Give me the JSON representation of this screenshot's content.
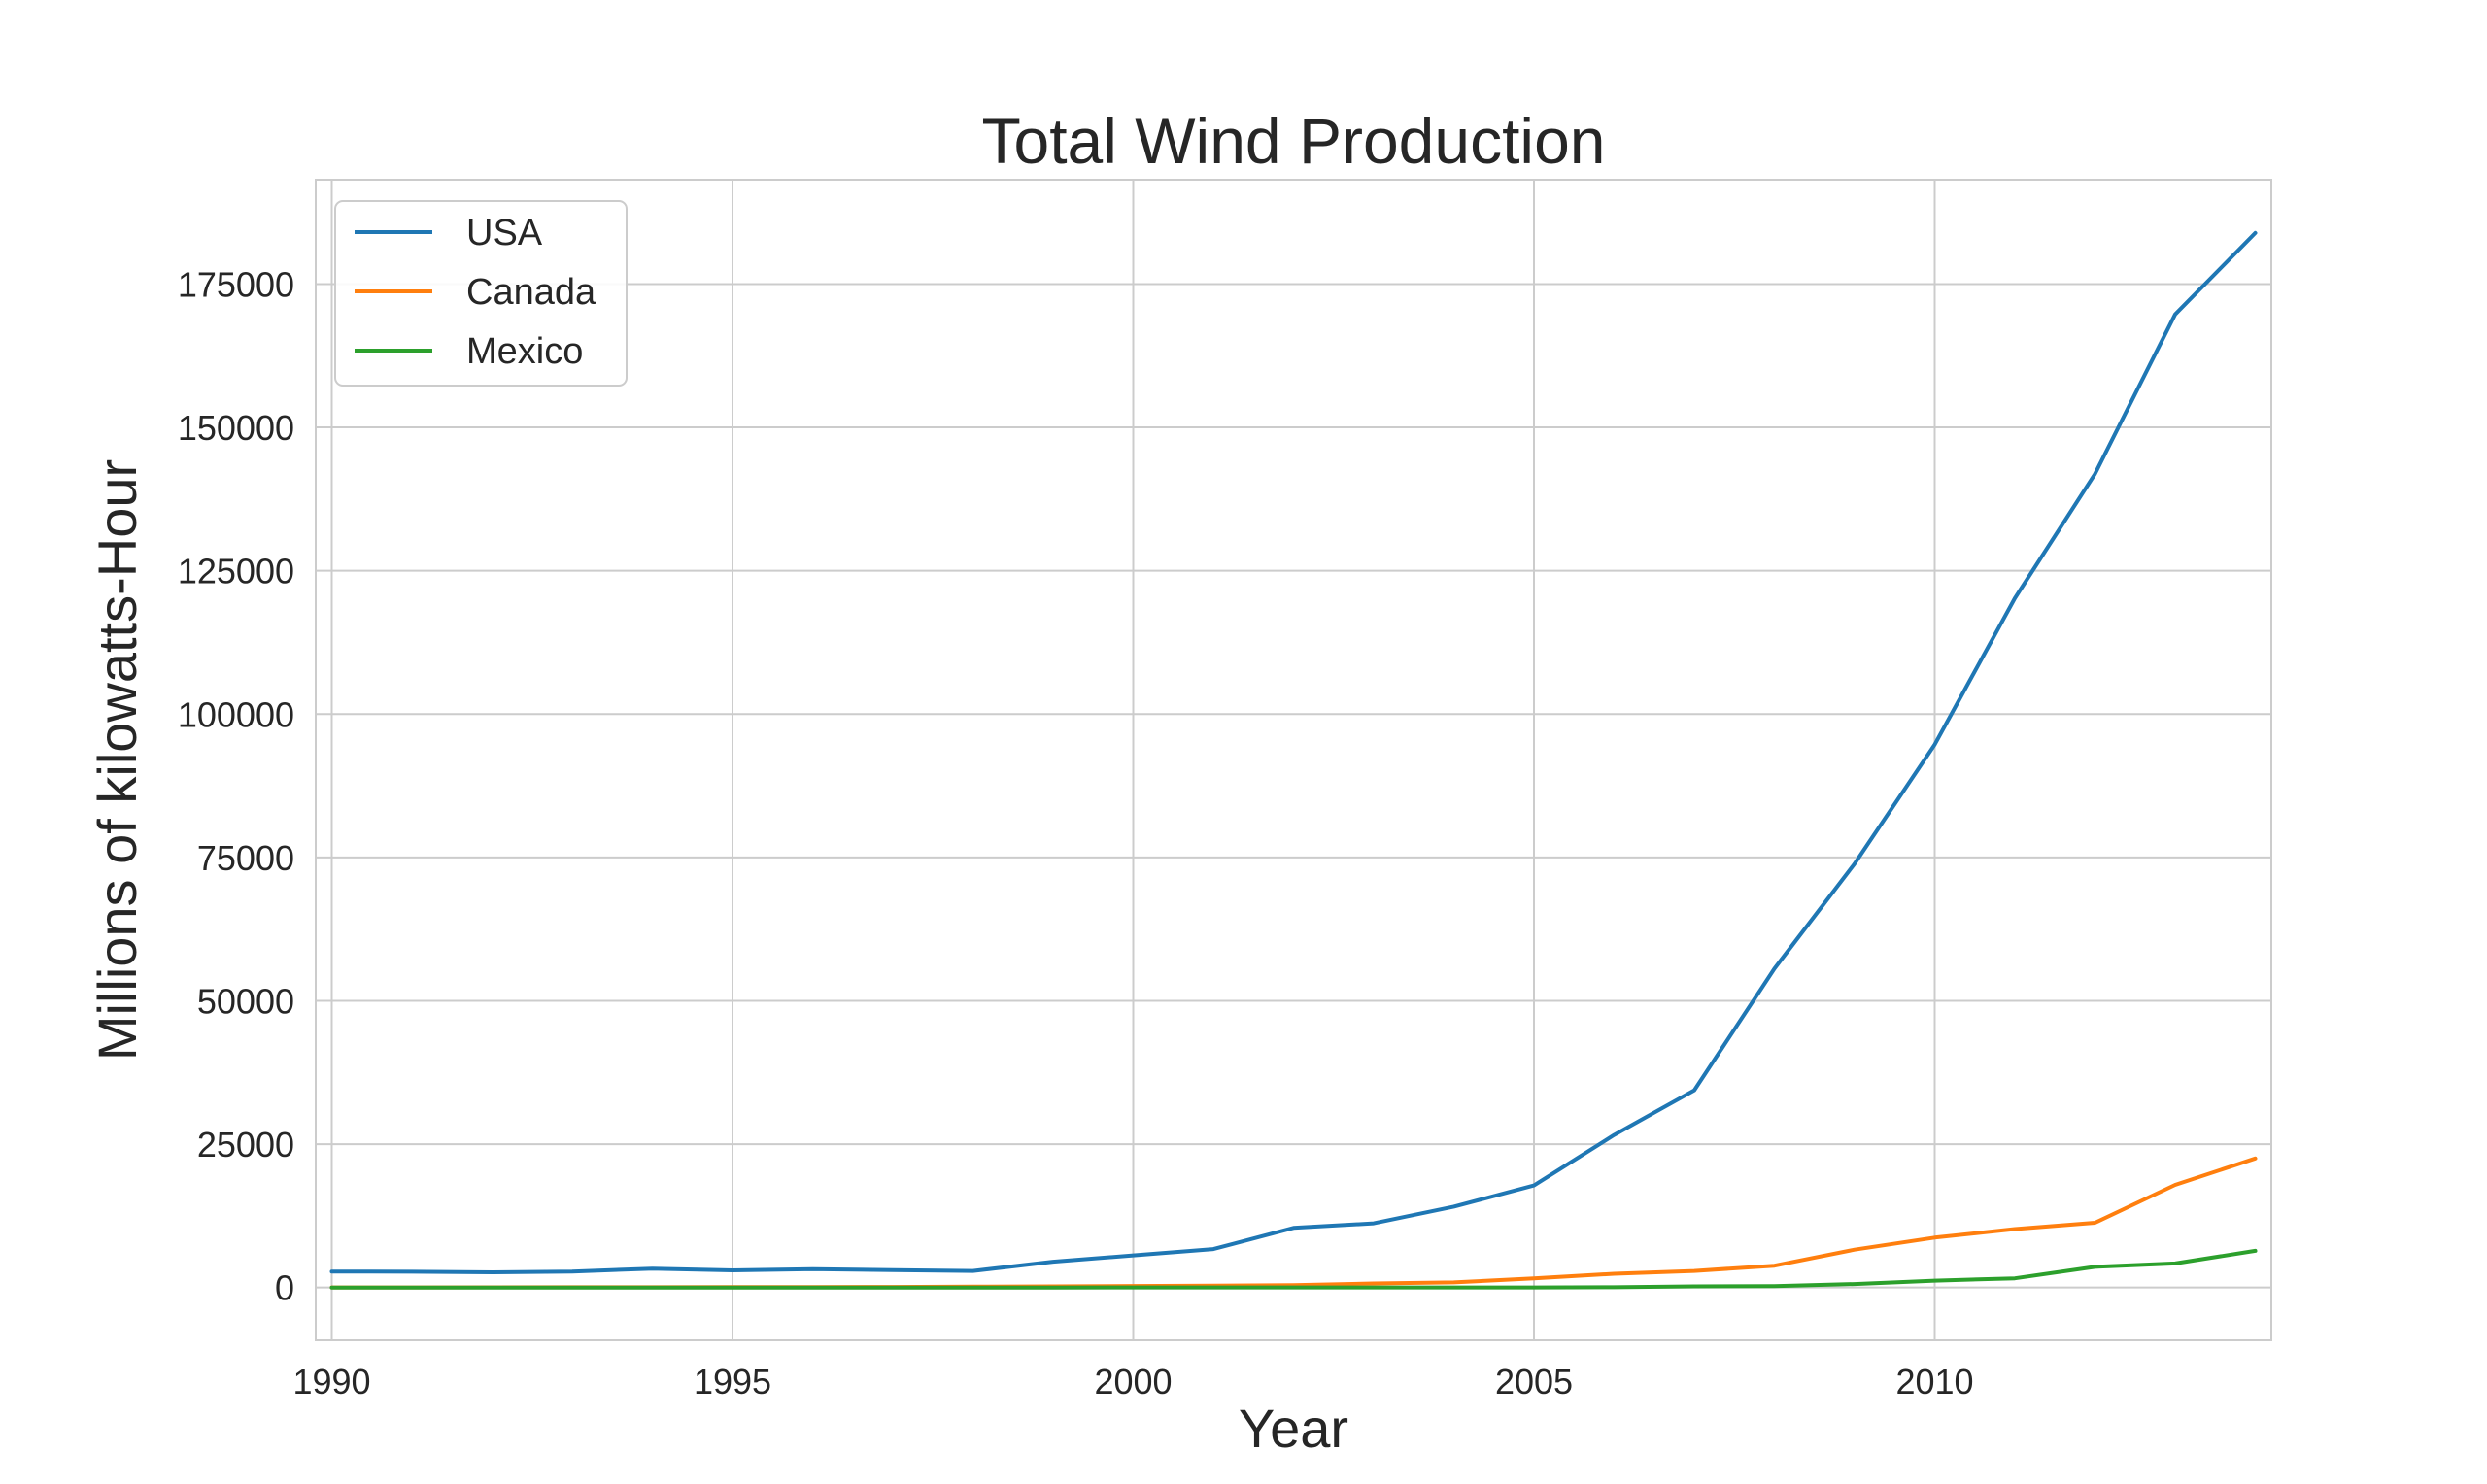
{
  "chart_data": {
    "type": "line",
    "title": "Total Wind Production",
    "xlabel": "Year",
    "ylabel": "Millions of kilowatts-Hour",
    "x": [
      1990,
      1991,
      1992,
      1993,
      1994,
      1995,
      1996,
      1997,
      1998,
      1999,
      2000,
      2001,
      2002,
      2003,
      2004,
      2005,
      2006,
      2007,
      2008,
      2009,
      2010,
      2011,
      2012,
      2013,
      2014
    ],
    "xlim": [
      1989.8,
      2014.2
    ],
    "ylim": [
      -9200,
      193200
    ],
    "xticks": [
      1990,
      1995,
      2000,
      2005,
      2010
    ],
    "yticks": [
      0,
      25000,
      50000,
      75000,
      100000,
      125000,
      150000,
      175000
    ],
    "grid": true,
    "legend_position": "upper-left",
    "series": [
      {
        "name": "USA",
        "color": "#1f77b4",
        "values": [
          2800,
          2750,
          2650,
          2800,
          3300,
          3000,
          3200,
          3050,
          2900,
          4500,
          5600,
          6700,
          10400,
          11200,
          14100,
          17800,
          26600,
          34400,
          55600,
          73900,
          94700,
          120200,
          141900,
          169700,
          183900
        ]
      },
      {
        "name": "Canada",
        "color": "#ff7f0e",
        "values": [
          10,
          20,
          30,
          40,
          50,
          60,
          80,
          100,
          150,
          200,
          260,
          320,
          400,
          700,
          900,
          1600,
          2400,
          2900,
          3800,
          6600,
          8700,
          10200,
          11300,
          17900,
          22500
        ]
      },
      {
        "name": "Mexico",
        "color": "#2ca02c",
        "values": [
          5,
          5,
          5,
          5,
          5,
          5,
          5,
          5,
          5,
          5,
          10,
          10,
          10,
          10,
          10,
          20,
          40,
          200,
          250,
          600,
          1200,
          1600,
          3600,
          4200,
          6400
        ]
      }
    ]
  }
}
